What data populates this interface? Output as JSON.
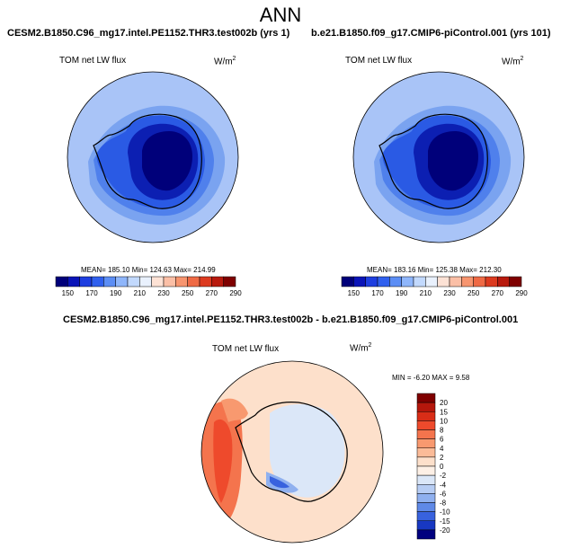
{
  "page": {
    "title": "ANN"
  },
  "panels": [
    {
      "case": "CESM2.B1850.C96_mg17.intel.PE1152.THR3.test002b (yrs 1)",
      "variable": "TOM net LW flux",
      "units": "W/m",
      "units_sup": "2",
      "stats": "MEAN= 185.10  Min= 124.63  Max= 214.99"
    },
    {
      "case": "b.e21.B1850.f09_g17.CMIP6-piControl.001 (yrs 101)",
      "variable": "TOM net LW flux",
      "units": "W/m",
      "units_sup": "2",
      "stats": "MEAN= 183.16  Min= 125.38  Max= 212.30"
    },
    {
      "case": "CESM2.B1850.C96_mg17.intel.PE1152.THR3.test002b - b.e21.B1850.f09_g17.CMIP6-piControl.001",
      "variable": "TOM net LW flux",
      "units": "W/m",
      "units_sup": "2",
      "stats": "MIN =  -6.20 MAX =   9.58"
    }
  ],
  "chart_data": [
    {
      "type": "heatmap",
      "projection": "south polar stereographic",
      "title": "CESM2.B1850.C96_mg17.intel.PE1152.THR3.test002b (yrs 1)",
      "variable": "TOM net LW flux",
      "units": "W/m2",
      "stats": {
        "mean": 185.1,
        "min": 124.63,
        "max": 214.99
      },
      "colorbar": {
        "orientation": "horizontal",
        "levels": [
          150,
          170,
          190,
          210,
          230,
          250,
          270,
          290
        ],
        "colors": [
          "#00007a",
          "#0a14b8",
          "#1e3ee0",
          "#3060ee",
          "#5c8ef5",
          "#8fb6fb",
          "#c2d9fd",
          "#e9f1fd",
          "#fde2d5",
          "#fbbfa6",
          "#f7956f",
          "#ef6a45",
          "#dc3a1f",
          "#b81a0e",
          "#7f0000"
        ]
      }
    },
    {
      "type": "heatmap",
      "projection": "south polar stereographic",
      "title": "b.e21.B1850.f09_g17.CMIP6-piControl.001 (yrs 101)",
      "variable": "TOM net LW flux",
      "units": "W/m2",
      "stats": {
        "mean": 183.16,
        "min": 125.38,
        "max": 212.3
      },
      "colorbar": {
        "orientation": "horizontal",
        "levels": [
          150,
          170,
          190,
          210,
          230,
          250,
          270,
          290
        ],
        "colors": [
          "#00007a",
          "#0a14b8",
          "#1e3ee0",
          "#3060ee",
          "#5c8ef5",
          "#8fb6fb",
          "#c2d9fd",
          "#e9f1fd",
          "#fde2d5",
          "#fbbfa6",
          "#f7956f",
          "#ef6a45",
          "#dc3a1f",
          "#b81a0e",
          "#7f0000"
        ]
      }
    },
    {
      "type": "heatmap",
      "projection": "south polar stereographic",
      "title": "CESM2.B1850.C96_mg17.intel.PE1152.THR3.test002b - b.e21.B1850.f09_g17.CMIP6-piControl.001",
      "variable": "TOM net LW flux",
      "units": "W/m2",
      "stats": {
        "min": -6.2,
        "max": 9.58
      },
      "colorbar": {
        "orientation": "vertical",
        "levels": [
          20,
          15,
          10,
          8,
          6,
          4,
          2,
          0,
          -2,
          -4,
          -6,
          -8,
          -10,
          -15,
          -20
        ],
        "colors": [
          "#7f0000",
          "#b5170c",
          "#d92d17",
          "#ee4a2c",
          "#f4744d",
          "#f8996f",
          "#fbbb98",
          "#fde0cb",
          "#fdf0e6",
          "#dbe7f8",
          "#b7cdf4",
          "#8fb0ef",
          "#5f89e7",
          "#3862de",
          "#1838c2",
          "#00007f"
        ]
      }
    }
  ]
}
